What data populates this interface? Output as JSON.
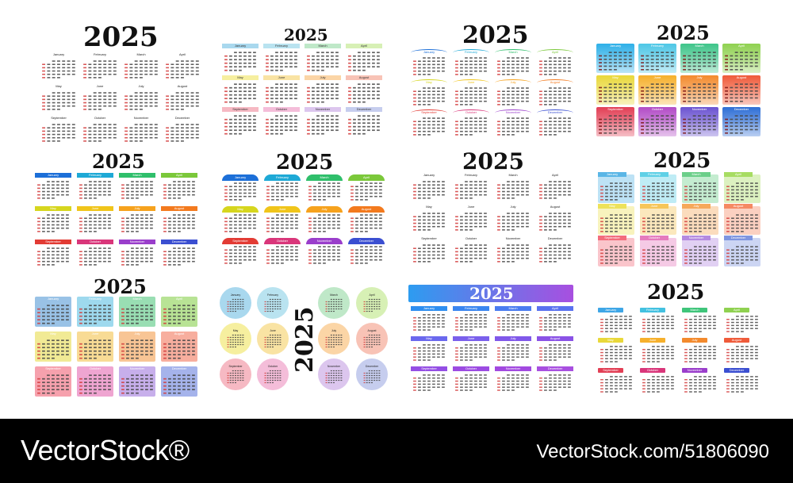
{
  "year_label": "2025",
  "months": [
    "January",
    "February",
    "March",
    "April",
    "May",
    "June",
    "July",
    "August",
    "September",
    "October",
    "November",
    "December"
  ],
  "variants": [
    {
      "id": "v1",
      "style": "plain"
    },
    {
      "id": "v2",
      "style": "pastel-bar",
      "colors": [
        "#a9d8ee",
        "#b9e3f0",
        "#bfe8c8",
        "#d7f0b5",
        "#f6ef9f",
        "#f9e3a3",
        "#fbd5a6",
        "#f8c3b6",
        "#f6b9c3",
        "#f4bdd9",
        "#dcc6ee",
        "#c6cdee"
      ]
    },
    {
      "id": "v3",
      "style": "arc",
      "colors": [
        "#1c6fd8",
        "#1ea9d6",
        "#2fbf6b",
        "#7bc83a",
        "#d6d61e",
        "#f0c51a",
        "#f6a21d",
        "#f37a1e",
        "#e23b34",
        "#d9367a",
        "#9a3ecb",
        "#3b4fd1"
      ]
    },
    {
      "id": "v4",
      "style": "gradient-block",
      "colors": [
        "#2fb0e8",
        "#4ec7e6",
        "#3fc58a",
        "#8fd150",
        "#e9d83a",
        "#f6b02c",
        "#f38a2d",
        "#ef5b3a",
        "#e23f55",
        "#b24bc6",
        "#6b53d1",
        "#2f6fd6"
      ]
    },
    {
      "id": "v5",
      "style": "plain-bar",
      "colors": [
        "#1c6fd8",
        "#1ea9d6",
        "#2fbf6b",
        "#7bc83a",
        "#d6d61e",
        "#f0c51a",
        "#f6a21d",
        "#f37a1e",
        "#e23b34",
        "#d9367a",
        "#9a3ecb",
        "#3b4fd1"
      ]
    },
    {
      "id": "v6",
      "style": "dome",
      "colors": [
        "#1c6fd8",
        "#1ea9d6",
        "#2fbf6b",
        "#7bc83a",
        "#d6d61e",
        "#f0c51a",
        "#f6a21d",
        "#f37a1e",
        "#e23b34",
        "#d9367a",
        "#9a3ecb",
        "#3b4fd1"
      ]
    },
    {
      "id": "v7",
      "style": "plain"
    },
    {
      "id": "v8",
      "style": "tab-block",
      "colors": [
        "#5ab6e6",
        "#5fd0e6",
        "#6ccf8a",
        "#a7dc62",
        "#ede25a",
        "#f6c65a",
        "#f6a85a",
        "#f58a63",
        "#f36d7c",
        "#e57bbd",
        "#b48ae0",
        "#7f95e0"
      ]
    },
    {
      "id": "v9",
      "style": "soft-block",
      "colors": [
        "#7fb3e0",
        "#86d0ea",
        "#7fd6a0",
        "#a6dc7a",
        "#ede57a",
        "#f6d27a",
        "#f6b67a",
        "#f59a86",
        "#f48a98",
        "#eb8fc6",
        "#b99be6",
        "#8fa0e6"
      ]
    },
    {
      "id": "v10",
      "style": "circles",
      "colors": [
        "#a9d8ee",
        "#b9e3f0",
        "#bfe8c8",
        "#d7f0b5",
        "#f6ef9f",
        "#f9e3a3",
        "#fbd5a6",
        "#f8c3b6",
        "#f6b9c3",
        "#f4bdd9",
        "#dcc6ee",
        "#c6cdee"
      ]
    },
    {
      "id": "v11",
      "style": "banner-bar",
      "banner_colors": [
        "#2d9cf0",
        "#a84fe0"
      ],
      "colors": [
        "#2f8ff0",
        "#3a86f0",
        "#4a7cf0",
        "#5a72ef",
        "#6a68ee",
        "#7a60ec",
        "#8058ea",
        "#8a52e6",
        "#944ee4",
        "#9c4be2",
        "#a249e0",
        "#a84fe0"
      ]
    },
    {
      "id": "v12",
      "style": "tag",
      "colors": [
        "#3ea6e6",
        "#43c1e0",
        "#3fc57a",
        "#8fd150",
        "#e9d83a",
        "#f6b02c",
        "#f38a2d",
        "#ef5b3a",
        "#e23f55",
        "#d9367a",
        "#9a3ecb",
        "#3b4fd1"
      ]
    }
  ],
  "footer": {
    "brand": "VectorStock®",
    "image_info": "VectorStock.com/51806090"
  }
}
